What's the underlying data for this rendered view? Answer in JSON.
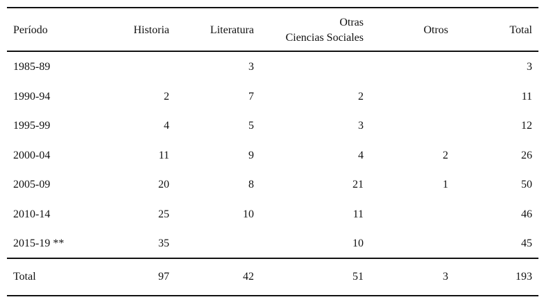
{
  "table": {
    "headers": [
      "Período",
      "Historia",
      "Literatura",
      [
        "Otras",
        "Ciencias Sociales"
      ],
      "Otros",
      "Total"
    ],
    "rows": [
      [
        "1985-89",
        null,
        3,
        null,
        null,
        3
      ],
      [
        "1990-94",
        2,
        7,
        2,
        null,
        11
      ],
      [
        "1995-99",
        4,
        5,
        3,
        null,
        12
      ],
      [
        "2000-04",
        11,
        9,
        4,
        2,
        26
      ],
      [
        "2005-09",
        20,
        8,
        21,
        1,
        50
      ],
      [
        "2010-14",
        25,
        10,
        11,
        null,
        46
      ],
      [
        "2015-19 **",
        35,
        null,
        10,
        null,
        45
      ]
    ],
    "total": [
      "Total",
      97,
      42,
      51,
      3,
      193
    ]
  }
}
